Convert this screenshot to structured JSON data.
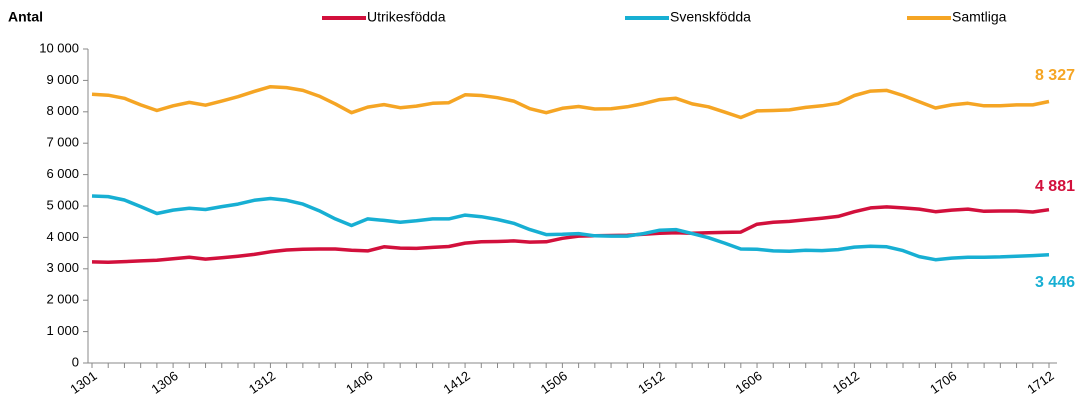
{
  "chart_data": {
    "type": "line",
    "y_label": "Antal",
    "categories": [
      "1301",
      null,
      null,
      null,
      null,
      "1306",
      null,
      null,
      null,
      null,
      null,
      "1312",
      null,
      null,
      null,
      null,
      null,
      "1406",
      null,
      null,
      null,
      null,
      null,
      "1412",
      null,
      null,
      null,
      null,
      null,
      "1506",
      null,
      null,
      null,
      null,
      null,
      "1512",
      null,
      null,
      null,
      null,
      null,
      "1606",
      null,
      null,
      null,
      null,
      null,
      "1612",
      null,
      null,
      null,
      null,
      null,
      "1706",
      null,
      null,
      null,
      null,
      null,
      "1712"
    ],
    "series": [
      {
        "name": "Utrikesfödda",
        "color": "#d2103c",
        "end_label": "4 881",
        "values": [
          3220,
          3210,
          3230,
          3250,
          3270,
          3320,
          3370,
          3310,
          3350,
          3400,
          3460,
          3540,
          3600,
          3620,
          3630,
          3630,
          3590,
          3570,
          3700,
          3660,
          3650,
          3680,
          3710,
          3820,
          3860,
          3870,
          3890,
          3850,
          3860,
          3970,
          4040,
          4050,
          4060,
          4070,
          4100,
          4130,
          4150,
          4130,
          4150,
          4160,
          4170,
          4420,
          4480,
          4510,
          4560,
          4610,
          4670,
          4820,
          4940,
          4970,
          4940,
          4900,
          4820,
          4870,
          4900,
          4830,
          4840,
          4840,
          4810,
          4881
        ]
      },
      {
        "name": "Svenskfödda",
        "color": "#17afd3",
        "end_label": "3 446",
        "values": [
          5320,
          5300,
          5190,
          4980,
          4760,
          4870,
          4930,
          4890,
          4980,
          5060,
          5180,
          5240,
          5180,
          5060,
          4850,
          4590,
          4380,
          4590,
          4540,
          4480,
          4530,
          4590,
          4590,
          4710,
          4660,
          4570,
          4450,
          4250,
          4090,
          4100,
          4120,
          4050,
          4040,
          4040,
          4120,
          4230,
          4250,
          4120,
          3990,
          3820,
          3630,
          3620,
          3570,
          3560,
          3590,
          3580,
          3610,
          3690,
          3720,
          3700,
          3580,
          3390,
          3290,
          3340,
          3370,
          3370,
          3380,
          3400,
          3420,
          3446
        ]
      },
      {
        "name": "Samtliga",
        "color": "#f5a524",
        "end_label": "8 327",
        "values": [
          8560,
          8530,
          8430,
          8220,
          8040,
          8190,
          8300,
          8210,
          8340,
          8480,
          8650,
          8800,
          8770,
          8680,
          8500,
          8250,
          7970,
          8150,
          8230,
          8130,
          8180,
          8270,
          8290,
          8540,
          8520,
          8450,
          8340,
          8100,
          7970,
          8110,
          8170,
          8090,
          8100,
          8160,
          8260,
          8390,
          8430,
          8250,
          8160,
          7990,
          7820,
          8030,
          8040,
          8060,
          8140,
          8190,
          8270,
          8520,
          8660,
          8680,
          8520,
          8320,
          8120,
          8220,
          8270,
          8190,
          8190,
          8220,
          8220,
          8327
        ]
      }
    ],
    "ylim": [
      0,
      10000
    ],
    "yticks": [
      0,
      {
        "value": 1000,
        "label": "1 000"
      },
      {
        "value": 2000,
        "label": "2 000"
      },
      {
        "value": 3000,
        "label": "3 000"
      },
      {
        "value": 4000,
        "label": "4 000"
      },
      {
        "value": 5000,
        "label": "5 000"
      },
      {
        "value": 6000,
        "label": "6 000"
      },
      {
        "value": 7000,
        "label": "7 000"
      },
      {
        "value": 8000,
        "label": "8 000"
      },
      {
        "value": 9000,
        "label": "9 000"
      },
      {
        "value": 10000,
        "label": "10 000"
      }
    ],
    "grid": false
  }
}
